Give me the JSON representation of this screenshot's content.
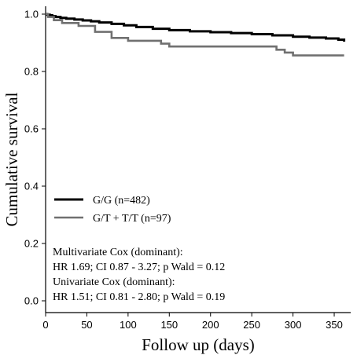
{
  "chart_data": {
    "type": "line",
    "xlabel": "Follow up (days)",
    "ylabel": "Cumulative survival",
    "xlim": [
      0,
      370
    ],
    "ylim": [
      0,
      1.0
    ],
    "x_ticks": [
      0,
      50,
      100,
      150,
      200,
      250,
      300,
      350
    ],
    "y_ticks": [
      0.0,
      0.2,
      0.4,
      0.6,
      0.8,
      1.0
    ],
    "y_tick_labels": [
      "0.0",
      "0.2",
      "0.4",
      "0.6",
      "0.8",
      "1.0"
    ],
    "grid": false,
    "legend_position": "lower-left",
    "step": true,
    "series": [
      {
        "name": "G/G (n=482)",
        "color": "#000000",
        "x": [
          0,
          2,
          5,
          8,
          12,
          18,
          25,
          35,
          45,
          55,
          65,
          80,
          95,
          110,
          130,
          150,
          175,
          200,
          225,
          250,
          275,
          300,
          320,
          340,
          355,
          362
        ],
        "y": [
          1.0,
          0.998,
          0.996,
          0.993,
          0.99,
          0.987,
          0.984,
          0.981,
          0.978,
          0.975,
          0.971,
          0.966,
          0.961,
          0.955,
          0.949,
          0.944,
          0.94,
          0.937,
          0.934,
          0.93,
          0.926,
          0.921,
          0.918,
          0.915,
          0.911,
          0.904
        ]
      },
      {
        "name": "G/T + T/T (n=97)",
        "color": "#707070",
        "x": [
          0,
          3,
          10,
          20,
          40,
          60,
          80,
          100,
          120,
          140,
          150,
          200,
          250,
          280,
          290,
          300,
          362
        ],
        "y": [
          1.0,
          0.99,
          0.979,
          0.969,
          0.959,
          0.938,
          0.917,
          0.907,
          0.907,
          0.897,
          0.887,
          0.887,
          0.887,
          0.876,
          0.866,
          0.856,
          0.856
        ]
      }
    ],
    "annotations": [
      "Multivariate Cox (dominant):",
      "HR 1.69; CI 0.87 - 3.27; p Wald = 0.12",
      "Univariate Cox (dominant):",
      "HR 1.51; CI 0.81 - 2.80; p Wald = 0.19"
    ]
  }
}
